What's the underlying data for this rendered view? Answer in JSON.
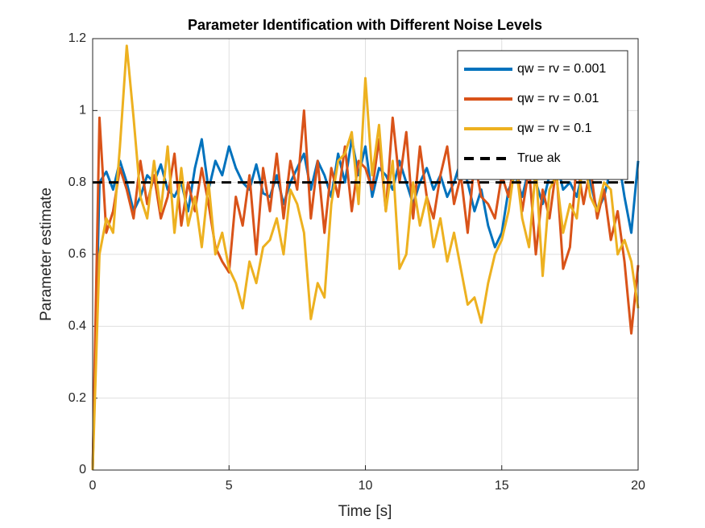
{
  "chart_data": {
    "type": "line",
    "title": "Parameter Identification with Different Noise Levels",
    "xlabel": "Time [s]",
    "ylabel": "Parameter estimate",
    "x": [
      0,
      0.25,
      0.5,
      0.75,
      1,
      1.25,
      1.5,
      1.75,
      2,
      2.25,
      2.5,
      2.75,
      3,
      3.25,
      3.5,
      3.75,
      4,
      4.25,
      4.5,
      4.75,
      5,
      5.25,
      5.5,
      5.75,
      6,
      6.25,
      6.5,
      6.75,
      7,
      7.25,
      7.5,
      7.75,
      8,
      8.25,
      8.5,
      8.75,
      9,
      9.25,
      9.5,
      9.75,
      10,
      10.25,
      10.5,
      10.75,
      11,
      11.25,
      11.5,
      11.75,
      12,
      12.25,
      12.5,
      12.75,
      13,
      13.25,
      13.5,
      13.75,
      14,
      14.25,
      14.5,
      14.75,
      15,
      15.25,
      15.5,
      15.75,
      16,
      16.25,
      16.5,
      16.75,
      17,
      17.25,
      17.5,
      17.75,
      18,
      18.25,
      18.5,
      18.75,
      19,
      19.25,
      19.5,
      19.75,
      20
    ],
    "series": [
      {
        "name": "qw = rv = 0.001",
        "color": "#0072bd",
        "values": [
          0,
          0.8,
          0.83,
          0.78,
          0.86,
          0.8,
          0.72,
          0.76,
          0.82,
          0.8,
          0.85,
          0.78,
          0.76,
          0.8,
          0.72,
          0.84,
          0.92,
          0.78,
          0.86,
          0.82,
          0.9,
          0.84,
          0.8,
          0.78,
          0.85,
          0.77,
          0.76,
          0.82,
          0.74,
          0.8,
          0.84,
          0.88,
          0.78,
          0.86,
          0.82,
          0.76,
          0.88,
          0.8,
          0.92,
          0.82,
          0.9,
          0.76,
          0.84,
          0.82,
          0.78,
          0.86,
          0.8,
          0.74,
          0.8,
          0.84,
          0.78,
          0.82,
          0.76,
          0.8,
          0.86,
          0.8,
          0.72,
          0.78,
          0.68,
          0.62,
          0.66,
          0.78,
          0.82,
          0.76,
          0.84,
          0.8,
          0.74,
          0.82,
          0.86,
          0.78,
          0.8,
          0.76,
          0.84,
          0.8,
          0.72,
          0.76,
          0.84,
          0.88,
          0.76,
          0.66,
          0.86
        ]
      },
      {
        "name": "qw = rv = 0.01",
        "color": "#d95319",
        "values": [
          0,
          0.98,
          0.66,
          0.72,
          0.84,
          0.78,
          0.7,
          0.86,
          0.74,
          0.82,
          0.7,
          0.76,
          0.88,
          0.68,
          0.8,
          0.72,
          0.84,
          0.74,
          0.62,
          0.58,
          0.55,
          0.76,
          0.68,
          0.82,
          0.6,
          0.84,
          0.72,
          0.88,
          0.7,
          0.86,
          0.78,
          1.0,
          0.7,
          0.86,
          0.66,
          0.84,
          0.76,
          0.9,
          0.72,
          0.86,
          0.84,
          0.78,
          0.92,
          0.72,
          0.98,
          0.8,
          0.94,
          0.7,
          0.9,
          0.76,
          0.7,
          0.82,
          0.9,
          0.74,
          0.82,
          0.66,
          0.86,
          0.76,
          0.74,
          0.7,
          0.82,
          0.76,
          0.88,
          0.72,
          0.84,
          0.6,
          0.78,
          0.7,
          0.84,
          0.56,
          0.62,
          0.86,
          0.74,
          0.84,
          0.7,
          0.78,
          0.64,
          0.72,
          0.58,
          0.38,
          0.57
        ]
      },
      {
        "name": "qw = rv = 0.1",
        "color": "#edb120",
        "values": [
          0,
          0.6,
          0.7,
          0.66,
          0.9,
          1.18,
          0.98,
          0.76,
          0.7,
          0.86,
          0.72,
          0.9,
          0.66,
          0.84,
          0.68,
          0.76,
          0.62,
          0.8,
          0.6,
          0.66,
          0.56,
          0.52,
          0.45,
          0.58,
          0.52,
          0.62,
          0.64,
          0.7,
          0.6,
          0.78,
          0.74,
          0.66,
          0.42,
          0.52,
          0.48,
          0.74,
          0.86,
          0.88,
          0.94,
          0.74,
          1.09,
          0.82,
          0.96,
          0.72,
          0.86,
          0.56,
          0.6,
          0.8,
          0.68,
          0.76,
          0.62,
          0.7,
          0.58,
          0.66,
          0.56,
          0.46,
          0.48,
          0.41,
          0.52,
          0.6,
          0.64,
          0.72,
          0.86,
          0.7,
          0.62,
          0.84,
          0.54,
          0.78,
          0.82,
          0.66,
          0.74,
          0.7,
          0.88,
          0.76,
          0.72,
          0.8,
          0.78,
          0.6,
          0.64,
          0.58,
          0.45
        ]
      }
    ],
    "reference": {
      "name": "True ak",
      "value": 0.8,
      "color": "#000000",
      "dashed": true
    },
    "xlim": [
      0,
      20
    ],
    "xticks": [
      0,
      5,
      10,
      15,
      20
    ],
    "ylim": [
      0,
      1.2
    ],
    "yticks": [
      0,
      0.2,
      0.4,
      0.6,
      0.8,
      1,
      1.2
    ],
    "grid": true,
    "legend_position": "top-right"
  }
}
